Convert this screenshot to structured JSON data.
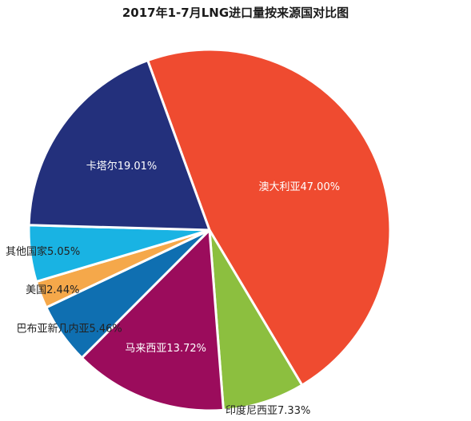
{
  "chart_data": {
    "type": "pie",
    "title": "2017年1-7月LNG进口量按来源国对比图",
    "slices": [
      {
        "label": "澳大利亚47.00%",
        "name": "澳大利亚",
        "value": 47.0,
        "color": "#ef4b30"
      },
      {
        "label": "印度尼西亚7.33%",
        "name": "印度尼西亚",
        "value": 7.33,
        "color": "#8cbf3f"
      },
      {
        "label": "马来西亚13.72%",
        "name": "马来西亚",
        "value": 13.72,
        "color": "#9b0c5c"
      },
      {
        "label": "巴布亚新几内亚5.46%",
        "name": "巴布亚新几内亚",
        "value": 5.46,
        "color": "#0f6fb1"
      },
      {
        "label": "美国2.44%",
        "name": "美国",
        "value": 2.44,
        "color": "#f5a84a"
      },
      {
        "label": "其他国家5.05%",
        "name": "其他国家",
        "value": 5.05,
        "color": "#19b3e3"
      },
      {
        "label": "卡塔尔19.01%",
        "name": "卡塔尔",
        "value": 19.01,
        "color": "#23307c"
      }
    ]
  }
}
